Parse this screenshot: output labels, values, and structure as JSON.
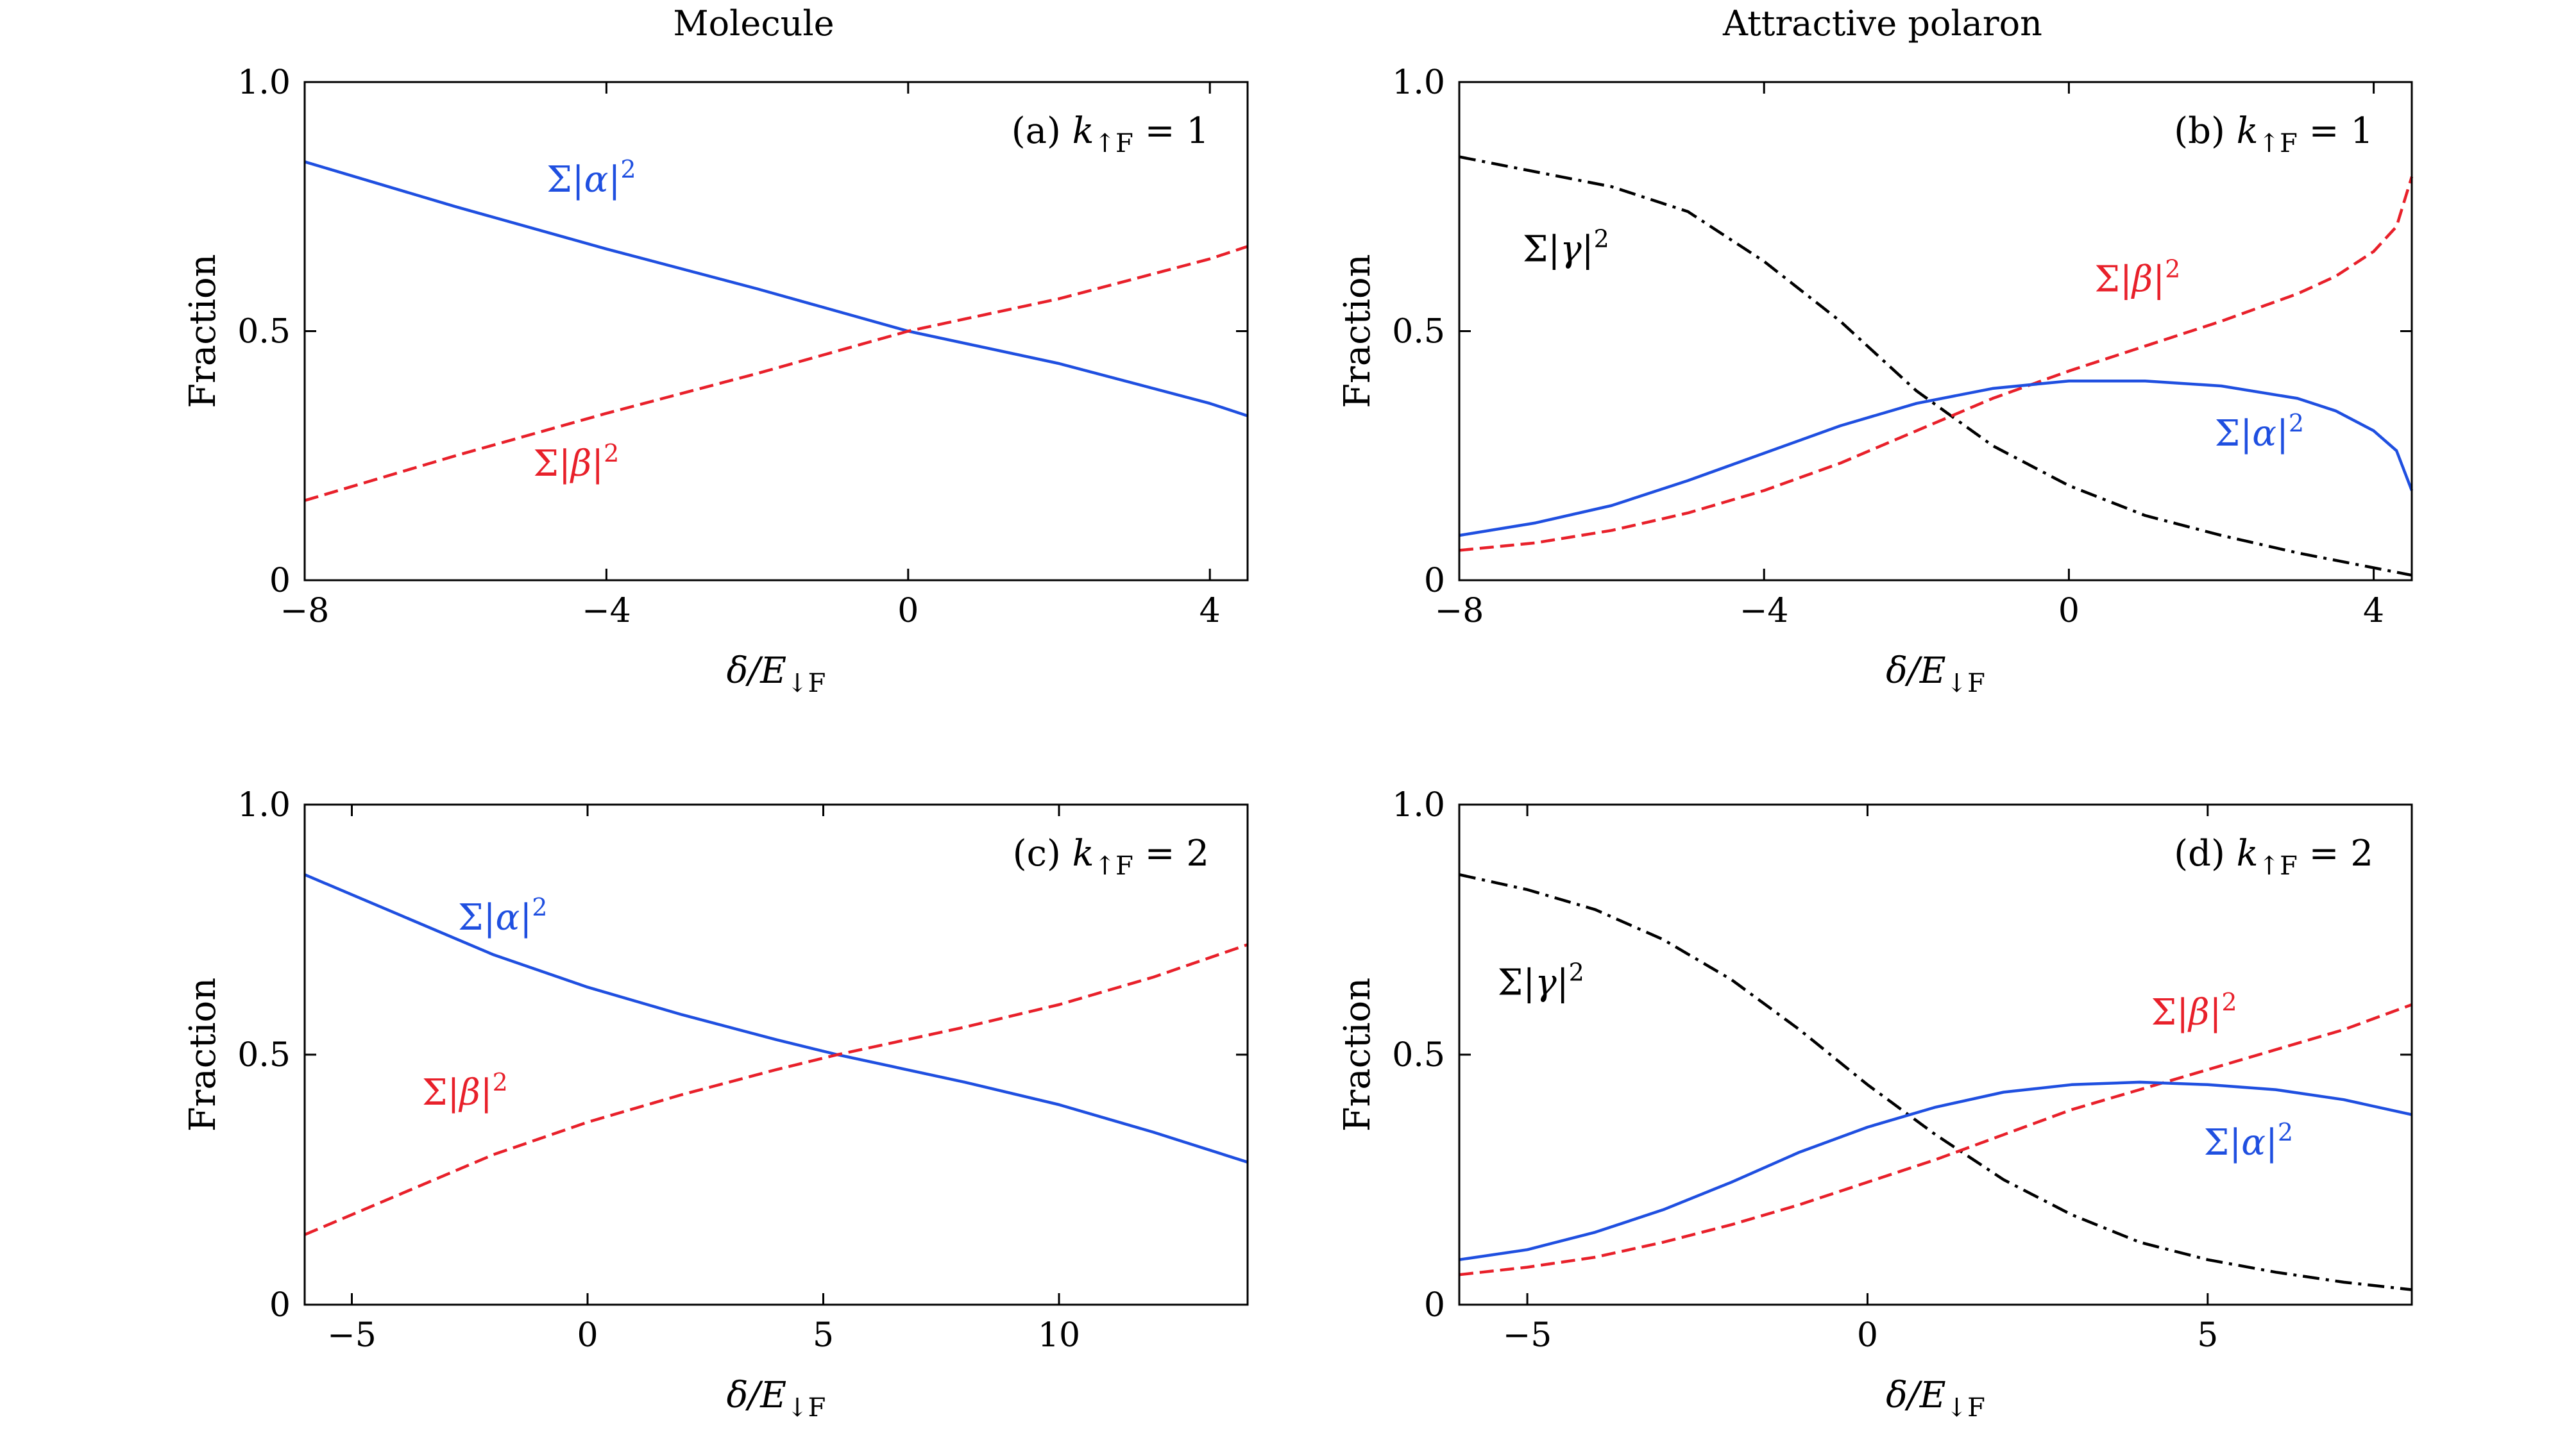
{
  "column_titles": [
    "Molecule",
    "Attractive polaron"
  ],
  "colors": {
    "alpha": "#1f4fe0",
    "beta": "#e8202a",
    "gamma": "#000000"
  },
  "chart_data": [
    {
      "type": "line",
      "panel_label": "(a)  k↑F = 1",
      "xlabel": "δ/E↓F",
      "ylabel": "Fraction",
      "xlim": [
        -8,
        4.5
      ],
      "ylim": [
        0,
        1
      ],
      "xticks": [
        -8,
        -4,
        0,
        4
      ],
      "xtick_labels": [
        "−8",
        "−4",
        "0",
        "4"
      ],
      "yticks": [
        0,
        0.5,
        1
      ],
      "ytick_labels": [
        "0",
        "0.5",
        "1.0"
      ],
      "series": [
        {
          "name": "Σ|α|²",
          "style": "solid",
          "color_key": "alpha",
          "x": [
            -8,
            -6,
            -4,
            -2,
            0,
            2,
            4,
            4.5
          ],
          "y": [
            0.84,
            0.75,
            0.665,
            0.585,
            0.5,
            0.435,
            0.355,
            0.33
          ],
          "label_pos": [
            -4.2,
            0.78
          ]
        },
        {
          "name": "Σ|β|²",
          "style": "dashed",
          "color_key": "beta",
          "x": [
            -8,
            -6,
            -4,
            -2,
            0,
            2,
            4,
            4.5
          ],
          "y": [
            0.16,
            0.25,
            0.335,
            0.415,
            0.5,
            0.565,
            0.645,
            0.67
          ],
          "label_pos": [
            -4.4,
            0.21
          ]
        }
      ]
    },
    {
      "type": "line",
      "panel_label": "(b)  k↑F = 1",
      "xlabel": "δ/E↓F",
      "ylabel": "Fraction",
      "xlim": [
        -8,
        4.5
      ],
      "ylim": [
        0,
        1
      ],
      "xticks": [
        -8,
        -4,
        0,
        4
      ],
      "xtick_labels": [
        "−8",
        "−4",
        "0",
        "4"
      ],
      "yticks": [
        0,
        0.5,
        1
      ],
      "ytick_labels": [
        "0",
        "0.5",
        "1.0"
      ],
      "series": [
        {
          "name": "Σ|γ|²",
          "style": "dashdot",
          "color_key": "gamma",
          "x": [
            -8,
            -6,
            -5,
            -4,
            -3,
            -2,
            -1,
            0,
            1,
            2,
            3,
            4,
            4.5
          ],
          "y": [
            0.85,
            0.79,
            0.74,
            0.64,
            0.52,
            0.38,
            0.27,
            0.19,
            0.13,
            0.09,
            0.055,
            0.025,
            0.01
          ],
          "label_pos": [
            -6.6,
            0.64
          ]
        },
        {
          "name": "Σ|β|²",
          "style": "dashed",
          "color_key": "beta",
          "x": [
            -8,
            -7,
            -6,
            -5,
            -4,
            -3,
            -2,
            -1,
            0,
            1,
            2,
            3,
            3.5,
            4,
            4.3,
            4.5
          ],
          "y": [
            0.06,
            0.075,
            0.1,
            0.135,
            0.18,
            0.235,
            0.3,
            0.365,
            0.42,
            0.47,
            0.52,
            0.575,
            0.61,
            0.66,
            0.71,
            0.81
          ],
          "label_pos": [
            0.9,
            0.58
          ]
        },
        {
          "name": "Σ|α|²",
          "style": "solid",
          "color_key": "alpha",
          "x": [
            -8,
            -7,
            -6,
            -5,
            -4,
            -3,
            -2,
            -1,
            0,
            1,
            2,
            3,
            3.5,
            4,
            4.3,
            4.5
          ],
          "y": [
            0.09,
            0.115,
            0.15,
            0.2,
            0.255,
            0.31,
            0.355,
            0.385,
            0.4,
            0.4,
            0.39,
            0.365,
            0.34,
            0.3,
            0.26,
            0.18
          ],
          "label_pos": [
            2.5,
            0.27
          ]
        }
      ]
    },
    {
      "type": "line",
      "panel_label": "(c)  k↑F = 2",
      "xlabel": "δ/E↓F",
      "ylabel": "Fraction",
      "xlim": [
        -6,
        14
      ],
      "ylim": [
        0,
        1
      ],
      "xticks": [
        -5,
        0,
        5,
        10
      ],
      "xtick_labels": [
        "−5",
        "0",
        "5",
        "10"
      ],
      "yticks": [
        0,
        0.5,
        1
      ],
      "ytick_labels": [
        "0",
        "0.5",
        "1.0"
      ],
      "series": [
        {
          "name": "Σ|α|²",
          "style": "solid",
          "color_key": "alpha",
          "x": [
            -6,
            -4,
            -2,
            0,
            2,
            4,
            5.3,
            8,
            10,
            12,
            14
          ],
          "y": [
            0.86,
            0.78,
            0.7,
            0.635,
            0.58,
            0.53,
            0.5,
            0.445,
            0.4,
            0.345,
            0.285
          ],
          "label_pos": [
            -1.8,
            0.75
          ]
        },
        {
          "name": "Σ|β|²",
          "style": "dashed",
          "color_key": "beta",
          "x": [
            -6,
            -4,
            -2,
            0,
            2,
            4,
            5.3,
            8,
            10,
            12,
            14
          ],
          "y": [
            0.14,
            0.22,
            0.3,
            0.365,
            0.42,
            0.47,
            0.5,
            0.555,
            0.6,
            0.655,
            0.72
          ],
          "label_pos": [
            -2.6,
            0.4
          ]
        }
      ]
    },
    {
      "type": "line",
      "panel_label": "(d)  k↑F = 2",
      "xlabel": "δ/E↓F",
      "ylabel": "Fraction",
      "xlim": [
        -6,
        8
      ],
      "ylim": [
        0,
        1
      ],
      "xticks": [
        -5,
        0,
        5
      ],
      "xtick_labels": [
        "−5",
        "0",
        "5"
      ],
      "yticks": [
        0,
        0.5,
        1
      ],
      "ytick_labels": [
        "0",
        "0.5",
        "1.0"
      ],
      "series": [
        {
          "name": "Σ|γ|²",
          "style": "dashdot",
          "color_key": "gamma",
          "x": [
            -6,
            -5,
            -4,
            -3,
            -2,
            -1,
            0,
            1,
            2,
            3,
            4,
            5,
            6,
            7,
            8
          ],
          "y": [
            0.86,
            0.83,
            0.79,
            0.73,
            0.65,
            0.55,
            0.44,
            0.34,
            0.25,
            0.18,
            0.125,
            0.09,
            0.065,
            0.045,
            0.03
          ],
          "label_pos": [
            -4.8,
            0.62
          ]
        },
        {
          "name": "Σ|β|²",
          "style": "dashed",
          "color_key": "beta",
          "x": [
            -6,
            -5,
            -4,
            -3,
            -2,
            -1,
            0,
            1,
            2,
            3,
            4,
            5,
            6,
            7,
            8
          ],
          "y": [
            0.06,
            0.075,
            0.095,
            0.125,
            0.16,
            0.2,
            0.245,
            0.29,
            0.34,
            0.39,
            0.43,
            0.47,
            0.51,
            0.55,
            0.6
          ],
          "label_pos": [
            4.8,
            0.56
          ]
        },
        {
          "name": "Σ|α|²",
          "style": "solid",
          "color_key": "alpha",
          "x": [
            -6,
            -5,
            -4,
            -3,
            -2,
            -1,
            0,
            1,
            2,
            3,
            4,
            5,
            6,
            7,
            8
          ],
          "y": [
            0.09,
            0.11,
            0.145,
            0.19,
            0.245,
            0.305,
            0.355,
            0.395,
            0.425,
            0.44,
            0.445,
            0.44,
            0.43,
            0.41,
            0.38
          ],
          "label_pos": [
            5.6,
            0.3
          ]
        }
      ]
    }
  ]
}
